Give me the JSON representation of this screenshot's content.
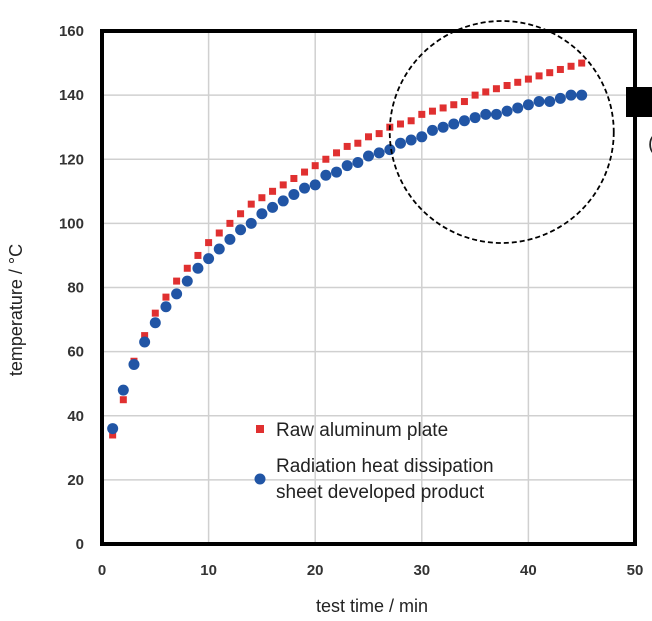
{
  "chart_data": {
    "type": "scatter",
    "title": "",
    "xlabel": "test time / min",
    "ylabel": "temperature / °C",
    "xlim": [
      0,
      50
    ],
    "ylim": [
      0,
      160
    ],
    "xticks": [
      0,
      10,
      20,
      30,
      40,
      50
    ],
    "yticks": [
      0,
      20,
      40,
      60,
      80,
      100,
      120,
      140,
      160
    ],
    "grid": true,
    "legend_position": "bottom-center",
    "series": [
      {
        "name": "Raw aluminum plate",
        "marker": "square",
        "color": "#e03030",
        "x": [
          1,
          2,
          3,
          4,
          5,
          6,
          7,
          8,
          9,
          10,
          11,
          12,
          13,
          14,
          15,
          16,
          17,
          18,
          19,
          20,
          21,
          22,
          23,
          24,
          25,
          26,
          27,
          28,
          29,
          30,
          31,
          32,
          33,
          34,
          35,
          36,
          37,
          38,
          39,
          40,
          41,
          42,
          43,
          44,
          45
        ],
        "y": [
          34,
          45,
          57,
          65,
          72,
          77,
          82,
          86,
          90,
          94,
          97,
          100,
          103,
          106,
          108,
          110,
          112,
          114,
          116,
          118,
          120,
          122,
          124,
          125,
          127,
          128,
          130,
          131,
          132,
          134,
          135,
          136,
          137,
          138,
          140,
          141,
          142,
          143,
          144,
          145,
          146,
          147,
          148,
          149,
          150
        ]
      },
      {
        "name": "Radiation heat dissipation sheet developed product",
        "legend_lines": [
          "Radiation heat dissipation",
          "sheet developed product"
        ],
        "marker": "circle",
        "color": "#2155a5",
        "x": [
          1,
          2,
          3,
          4,
          5,
          6,
          7,
          8,
          9,
          10,
          11,
          12,
          13,
          14,
          15,
          16,
          17,
          18,
          19,
          20,
          21,
          22,
          23,
          24,
          25,
          26,
          27,
          28,
          29,
          30,
          31,
          32,
          33,
          34,
          35,
          36,
          37,
          38,
          39,
          40,
          41,
          42,
          43,
          44,
          45
        ],
        "y": [
          36,
          48,
          56,
          63,
          69,
          74,
          78,
          82,
          86,
          89,
          92,
          95,
          98,
          100,
          103,
          105,
          107,
          109,
          111,
          112,
          115,
          116,
          118,
          119,
          121,
          122,
          123,
          125,
          126,
          127,
          129,
          130,
          131,
          132,
          133,
          134,
          134,
          135,
          136,
          137,
          138,
          138,
          139,
          140,
          140
        ]
      }
    ],
    "annotations": [
      "dashed-circle-highlight"
    ]
  }
}
